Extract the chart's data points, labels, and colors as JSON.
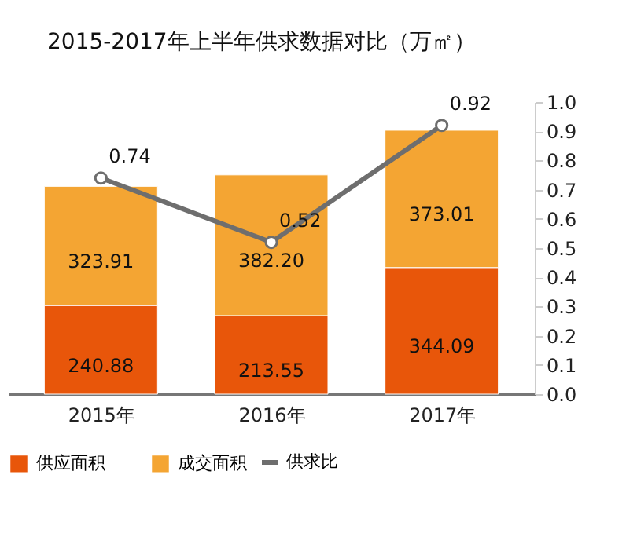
{
  "chart_data": {
    "type": "bar",
    "title": "2015-2017年上半年供求数据对比（万㎡）",
    "categories": [
      "2015年",
      "2016年",
      "2017年"
    ],
    "stacked": true,
    "series": [
      {
        "name": "供应面积",
        "color": "#e8560a",
        "values": [
          240.88,
          213.55,
          344.09
        ],
        "value_labels": [
          "240.88",
          "213.55",
          "344.09"
        ]
      },
      {
        "name": "成交面积",
        "color": "#f4a533",
        "values": [
          323.91,
          382.2,
          373.01
        ],
        "value_labels": [
          "323.91",
          "382.20",
          "373.01"
        ]
      },
      {
        "name": "供求比",
        "type": "line",
        "axis": "y2",
        "color": "#6e6e6e",
        "marker": "circle",
        "data_labels": true,
        "values": [
          0.74,
          0.52,
          0.92
        ]
      }
    ],
    "y2lim": [
      0,
      1
    ],
    "y2ticks": [
      {
        "value": 0,
        "label": "0.0"
      },
      {
        "value": 0.1,
        "label": "0.1"
      },
      {
        "value": 0.2,
        "label": "0.2"
      },
      {
        "value": 0.3,
        "label": "0.3"
      },
      {
        "value": 0.4,
        "label": "0.4"
      },
      {
        "value": 0.5,
        "label": "0.5"
      },
      {
        "value": 0.6,
        "label": "0.6"
      },
      {
        "value": 0.7,
        "label": "0.7"
      },
      {
        "value": 0.8,
        "label": "0.8"
      },
      {
        "value": 0.9,
        "label": "0.9"
      },
      {
        "value": 1,
        "label": "1.0"
      }
    ],
    "legend": "bottom",
    "grid": false
  }
}
